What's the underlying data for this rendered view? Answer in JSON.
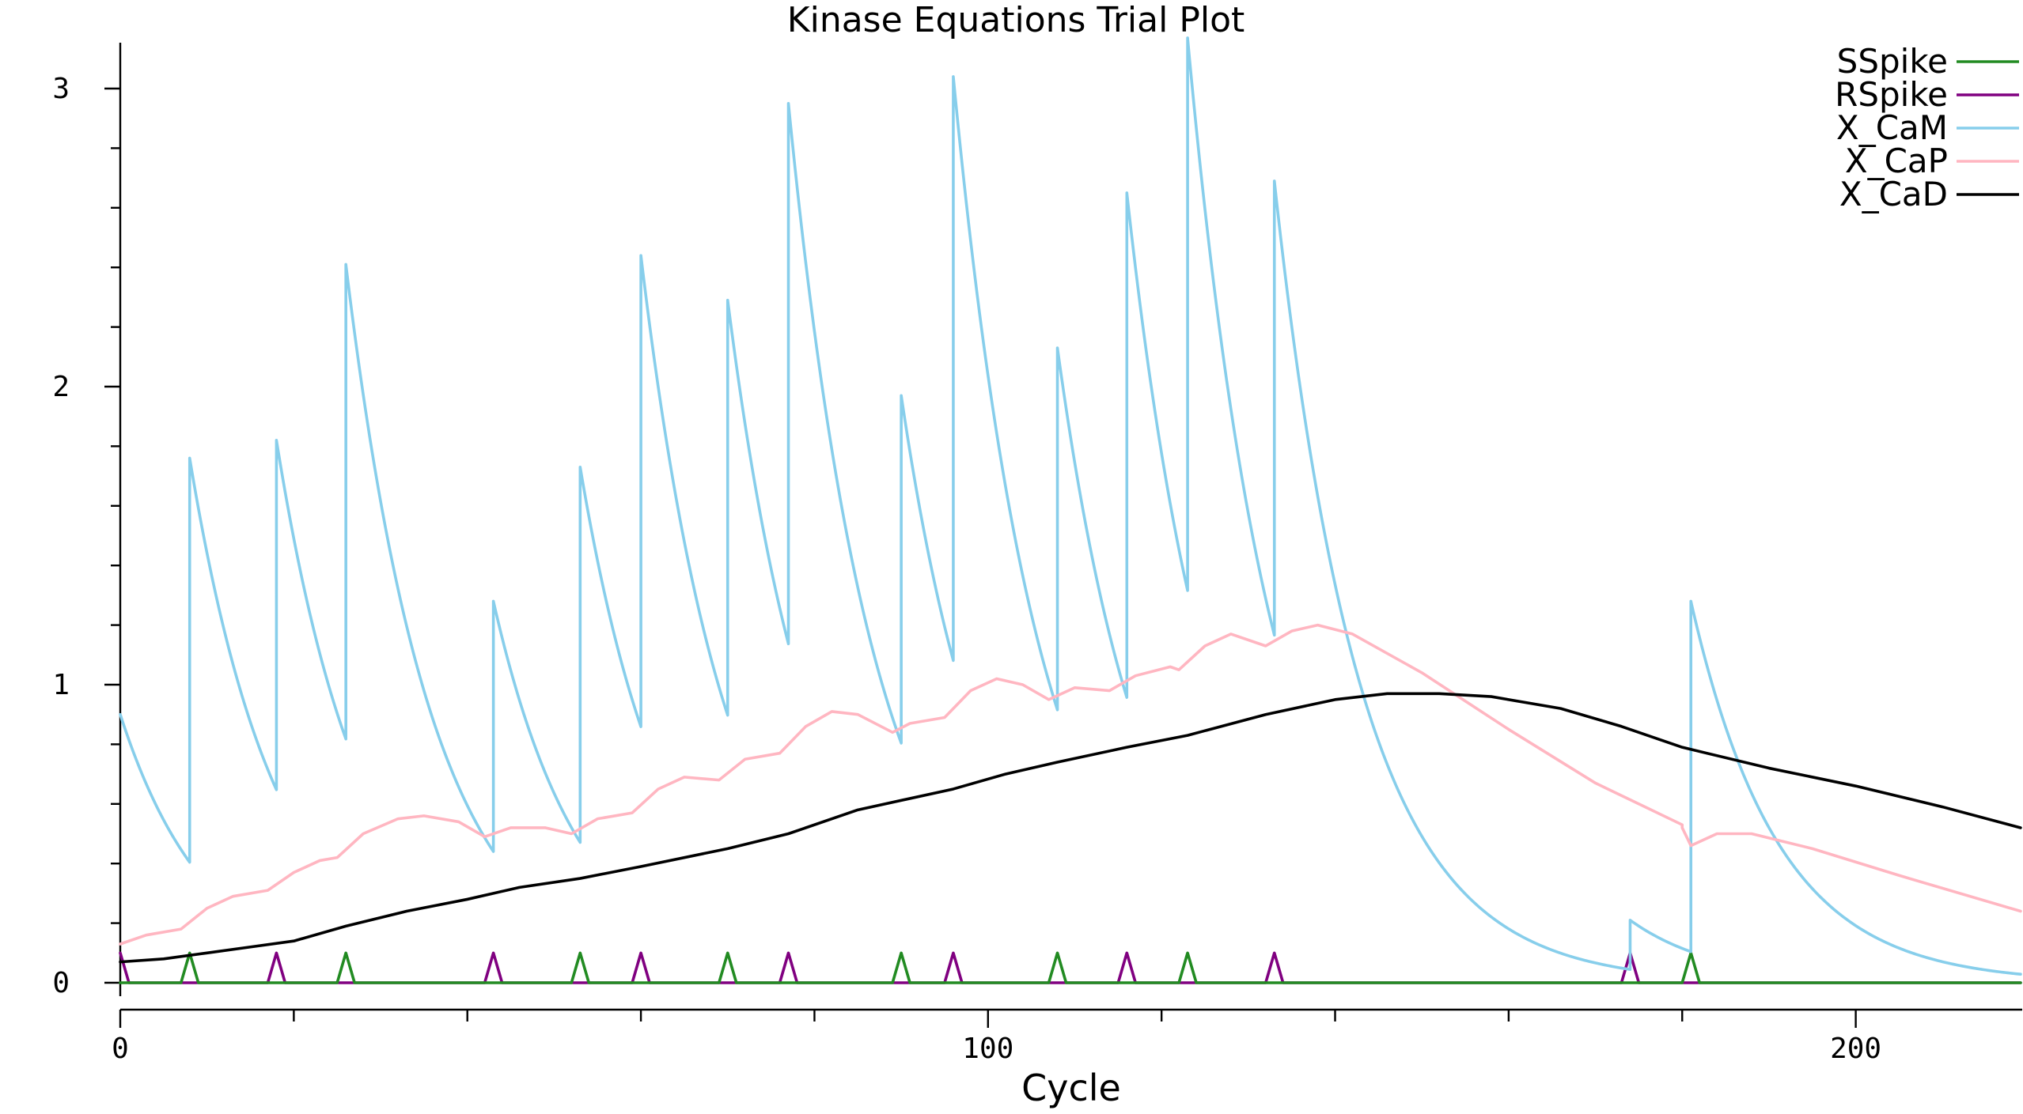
{
  "chart_data": {
    "type": "line",
    "title": "Kinase Equations Trial Plot",
    "xlabel": "Cycle",
    "ylabel": "",
    "xlim": [
      0,
      219
    ],
    "ylim": [
      -0.0833,
      3.15
    ],
    "x_ticks": [
      0,
      100,
      200
    ],
    "x_minor_ticks": [
      20,
      40,
      60,
      80,
      120,
      140,
      160,
      180
    ],
    "y_ticks": [
      0,
      1,
      2,
      3
    ],
    "y_minor_ticks": [
      0.2,
      0.4,
      0.6,
      0.8,
      1.2,
      1.4,
      1.6,
      1.8,
      2.2,
      2.4,
      2.6,
      2.8
    ],
    "x_tick_labels": [
      "0",
      "100",
      "200"
    ],
    "y_tick_labels": [
      "0",
      "1",
      "2",
      "3"
    ],
    "grid": false,
    "legend_position": "top-right",
    "series": [
      {
        "name": "SSpike",
        "color": "#228b22",
        "spike_x": [
          8,
          18,
          26,
          53,
          63,
          70,
          80,
          87,
          100,
          106,
          115,
          123,
          130,
          138,
          180
        ],
        "spike_source": [
          "S",
          "R",
          "S",
          "R",
          "S",
          "R",
          "S",
          "R",
          "S",
          "R",
          "S",
          "R",
          "S",
          "R",
          "S"
        ],
        "points": [
          {
            "x": 7,
            "y": 0
          },
          {
            "x": 8,
            "y": 0.1
          },
          {
            "x": 9,
            "y": 0
          },
          {
            "x": 25,
            "y": 0
          },
          {
            "x": 26,
            "y": 0.1
          },
          {
            "x": 27,
            "y": 0
          },
          {
            "x": 52,
            "y": 0
          },
          {
            "x": 53,
            "y": 0.1
          },
          {
            "x": 54,
            "y": 0
          },
          {
            "x": 69,
            "y": 0
          },
          {
            "x": 70,
            "y": 0.1
          },
          {
            "x": 71,
            "y": 0
          },
          {
            "x": 89,
            "y": 0
          },
          {
            "x": 90,
            "y": 0.1
          },
          {
            "x": 91,
            "y": 0
          },
          {
            "x": 107,
            "y": 0
          },
          {
            "x": 108,
            "y": 0.1
          },
          {
            "x": 109,
            "y": 0
          },
          {
            "x": 122,
            "y": 0
          },
          {
            "x": 123,
            "y": 0.1
          },
          {
            "x": 124,
            "y": 0
          },
          {
            "x": 180,
            "y": 0
          },
          {
            "x": 181,
            "y": 0.1
          },
          {
            "x": 182,
            "y": 0
          }
        ]
      },
      {
        "name": "RSpike",
        "color": "#800080",
        "points": [
          {
            "x": 0,
            "y": 0.1
          },
          {
            "x": 1,
            "y": 0
          },
          {
            "x": 17,
            "y": 0
          },
          {
            "x": 18,
            "y": 0.1
          },
          {
            "x": 19,
            "y": 0
          },
          {
            "x": 42,
            "y": 0
          },
          {
            "x": 43,
            "y": 0.1
          },
          {
            "x": 44,
            "y": 0
          },
          {
            "x": 59,
            "y": 0
          },
          {
            "x": 60,
            "y": 0.1
          },
          {
            "x": 61,
            "y": 0
          },
          {
            "x": 76,
            "y": 0
          },
          {
            "x": 77,
            "y": 0.1
          },
          {
            "x": 78,
            "y": 0
          },
          {
            "x": 95,
            "y": 0
          },
          {
            "x": 96,
            "y": 0.1
          },
          {
            "x": 97,
            "y": 0
          },
          {
            "x": 115,
            "y": 0
          },
          {
            "x": 116,
            "y": 0.1
          },
          {
            "x": 117,
            "y": 0
          },
          {
            "x": 132,
            "y": 0
          },
          {
            "x": 133,
            "y": 0.1
          },
          {
            "x": 134,
            "y": 0
          },
          {
            "x": 173,
            "y": 0
          },
          {
            "x": 174,
            "y": 0.1
          },
          {
            "x": 175,
            "y": 0
          }
        ]
      },
      {
        "name": "X_CaM",
        "color": "#87ceeb",
        "events": [
          {
            "t0": 0,
            "start": 0.9
          },
          {
            "t0": 8,
            "start": 1.76
          },
          {
            "t0": 18,
            "start": 1.82
          },
          {
            "t0": 26,
            "start": 2.41
          },
          {
            "t0": 43,
            "start": 1.28
          },
          {
            "t0": 53,
            "start": 1.73
          },
          {
            "t0": 60,
            "start": 2.44
          },
          {
            "t0": 70,
            "start": 2.29
          },
          {
            "t0": 77,
            "start": 2.95
          },
          {
            "t0": 90,
            "start": 1.97
          },
          {
            "t0": 96,
            "start": 3.04
          },
          {
            "t0": 108,
            "start": 2.13
          },
          {
            "t0": 116,
            "start": 2.65
          },
          {
            "t0": 123,
            "start": 3.17
          },
          {
            "t0": 133,
            "start": 2.69
          },
          {
            "t0": 174,
            "start": 0.21
          },
          {
            "t0": 181,
            "start": 1.28
          }
        ],
        "decay_tau": 10
      },
      {
        "name": "X_CaP",
        "color": "#ffb6c1",
        "points": [
          {
            "x": 0,
            "y": 0.13
          },
          {
            "x": 3,
            "y": 0.16
          },
          {
            "x": 7,
            "y": 0.18
          },
          {
            "x": 10,
            "y": 0.25
          },
          {
            "x": 13,
            "y": 0.29
          },
          {
            "x": 17,
            "y": 0.31
          },
          {
            "x": 20,
            "y": 0.37
          },
          {
            "x": 23,
            "y": 0.41
          },
          {
            "x": 25,
            "y": 0.42
          },
          {
            "x": 28,
            "y": 0.5
          },
          {
            "x": 32,
            "y": 0.55
          },
          {
            "x": 35,
            "y": 0.56
          },
          {
            "x": 39,
            "y": 0.54
          },
          {
            "x": 42,
            "y": 0.49
          },
          {
            "x": 45,
            "y": 0.52
          },
          {
            "x": 49,
            "y": 0.52
          },
          {
            "x": 52,
            "y": 0.5
          },
          {
            "x": 55,
            "y": 0.55
          },
          {
            "x": 59,
            "y": 0.57
          },
          {
            "x": 62,
            "y": 0.65
          },
          {
            "x": 65,
            "y": 0.69
          },
          {
            "x": 69,
            "y": 0.68
          },
          {
            "x": 72,
            "y": 0.75
          },
          {
            "x": 76,
            "y": 0.77
          },
          {
            "x": 79,
            "y": 0.86
          },
          {
            "x": 82,
            "y": 0.91
          },
          {
            "x": 85,
            "y": 0.9
          },
          {
            "x": 89,
            "y": 0.84
          },
          {
            "x": 91,
            "y": 0.87
          },
          {
            "x": 95,
            "y": 0.89
          },
          {
            "x": 98,
            "y": 0.98
          },
          {
            "x": 101,
            "y": 1.02
          },
          {
            "x": 104,
            "y": 1.0
          },
          {
            "x": 107,
            "y": 0.95
          },
          {
            "x": 110,
            "y": 0.99
          },
          {
            "x": 114,
            "y": 0.98
          },
          {
            "x": 117,
            "y": 1.03
          },
          {
            "x": 121,
            "y": 1.06
          },
          {
            "x": 122,
            "y": 1.05
          },
          {
            "x": 125,
            "y": 1.13
          },
          {
            "x": 128,
            "y": 1.17
          },
          {
            "x": 132,
            "y": 1.13
          },
          {
            "x": 135,
            "y": 1.18
          },
          {
            "x": 138,
            "y": 1.2
          },
          {
            "x": 142,
            "y": 1.17
          },
          {
            "x": 150,
            "y": 1.04
          },
          {
            "x": 160,
            "y": 0.85
          },
          {
            "x": 170,
            "y": 0.67
          },
          {
            "x": 180,
            "y": 0.53
          },
          {
            "x": 180,
            "y": 0.52
          },
          {
            "x": 181,
            "y": 0.46
          },
          {
            "x": 184,
            "y": 0.5
          },
          {
            "x": 188,
            "y": 0.5
          },
          {
            "x": 195,
            "y": 0.45
          },
          {
            "x": 205,
            "y": 0.36
          },
          {
            "x": 219,
            "y": 0.24
          }
        ]
      },
      {
        "name": "X_CaD",
        "color": "#000000",
        "points": [
          {
            "x": 0,
            "y": 0.07
          },
          {
            "x": 5,
            "y": 0.08
          },
          {
            "x": 10,
            "y": 0.1
          },
          {
            "x": 15,
            "y": 0.12
          },
          {
            "x": 20,
            "y": 0.14
          },
          {
            "x": 26,
            "y": 0.19
          },
          {
            "x": 33,
            "y": 0.24
          },
          {
            "x": 40,
            "y": 0.28
          },
          {
            "x": 46,
            "y": 0.32
          },
          {
            "x": 53,
            "y": 0.35
          },
          {
            "x": 60,
            "y": 0.39
          },
          {
            "x": 70,
            "y": 0.45
          },
          {
            "x": 77,
            "y": 0.5
          },
          {
            "x": 85,
            "y": 0.58
          },
          {
            "x": 96,
            "y": 0.65
          },
          {
            "x": 102,
            "y": 0.7
          },
          {
            "x": 108,
            "y": 0.74
          },
          {
            "x": 116,
            "y": 0.79
          },
          {
            "x": 123,
            "y": 0.83
          },
          {
            "x": 132,
            "y": 0.9
          },
          {
            "x": 140,
            "y": 0.95
          },
          {
            "x": 146,
            "y": 0.97
          },
          {
            "x": 152,
            "y": 0.97
          },
          {
            "x": 158,
            "y": 0.96
          },
          {
            "x": 166,
            "y": 0.92
          },
          {
            "x": 173,
            "y": 0.86
          },
          {
            "x": 180,
            "y": 0.79
          },
          {
            "x": 190,
            "y": 0.72
          },
          {
            "x": 200,
            "y": 0.66
          },
          {
            "x": 210,
            "y": 0.59
          },
          {
            "x": 219,
            "y": 0.52
          }
        ]
      }
    ]
  }
}
